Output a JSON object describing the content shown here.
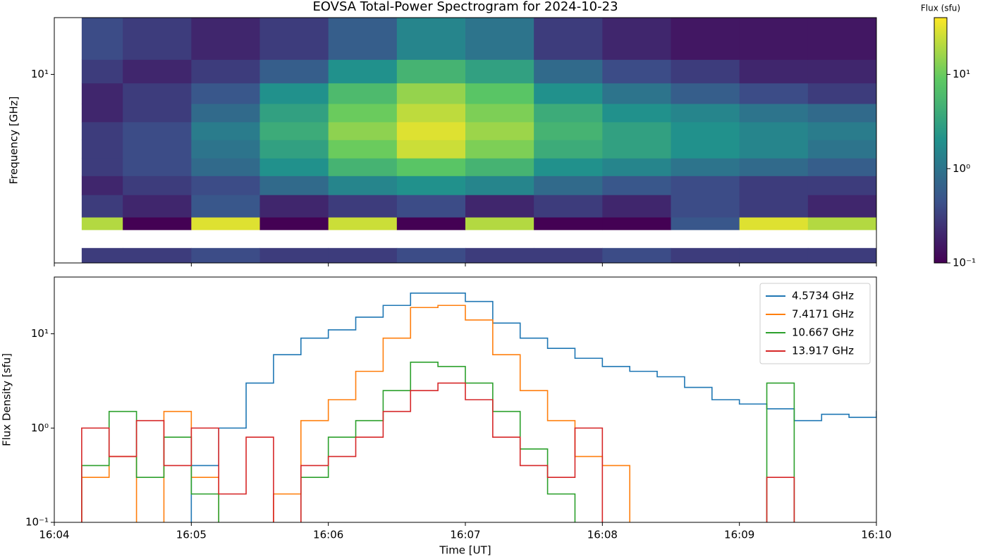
{
  "chart_data": [
    {
      "type": "heatmap",
      "title": "EOVSA Total-Power Spectrogram for 2024-10-23",
      "y_label": "Frequency [GHz]",
      "x_edges": [
        964.2,
        964.5,
        965.0,
        965.5,
        966.0,
        966.5,
        967.0,
        967.5,
        968.0,
        968.5,
        969.0,
        969.5,
        970.0
      ],
      "y_edges": [
        1.0,
        1.2,
        1.5,
        1.75,
        2.3,
        2.9,
        3.6,
        4.5,
        5.6,
        7.0,
        9.0,
        12.0,
        20.0
      ],
      "values": [
        [
          0.3,
          0.3,
          0.4,
          0.3,
          0.3,
          0.4,
          0.3,
          0.3,
          0.4,
          0.3,
          0.3,
          0.3
        ],
        [
          null,
          null,
          null,
          null,
          null,
          null,
          null,
          null,
          null,
          null,
          null,
          null
        ],
        [
          20,
          0.1,
          30,
          0.1,
          25,
          0.1,
          20,
          0.1,
          0.1,
          0.5,
          30,
          20
        ],
        [
          0.3,
          0.2,
          0.5,
          0.2,
          0.3,
          0.4,
          0.2,
          0.3,
          0.2,
          0.4,
          0.3,
          0.2
        ],
        [
          0.2,
          0.3,
          0.4,
          0.8,
          1.5,
          2,
          1.5,
          0.8,
          0.5,
          0.4,
          0.3,
          0.3
        ],
        [
          0.3,
          0.4,
          0.8,
          2,
          5,
          8,
          5,
          2,
          1.5,
          1,
          0.8,
          0.6
        ],
        [
          0.3,
          0.4,
          1,
          3,
          10,
          25,
          12,
          4,
          3,
          2,
          1.5,
          1
        ],
        [
          0.3,
          0.4,
          1.2,
          4,
          14,
          30,
          16,
          5,
          3,
          2,
          1.5,
          1.2
        ],
        [
          0.2,
          0.3,
          0.8,
          3,
          10,
          22,
          12,
          4,
          2,
          1.5,
          1,
          0.8
        ],
        [
          0.2,
          0.3,
          0.5,
          2,
          6,
          15,
          8,
          2,
          1,
          0.6,
          0.4,
          0.3
        ],
        [
          0.3,
          0.2,
          0.3,
          0.6,
          2,
          5,
          3,
          0.8,
          0.4,
          0.3,
          0.2,
          0.2
        ],
        [
          0.4,
          0.3,
          0.2,
          0.3,
          0.6,
          1.5,
          1,
          0.3,
          0.2,
          0.15,
          0.15,
          0.15
        ]
      ],
      "xlim": [
        964,
        970
      ],
      "xticks": [
        964,
        965,
        966,
        967,
        968,
        969,
        970
      ],
      "ylim": [
        1,
        20
      ],
      "log_y": true,
      "yticks": [
        {
          "value": 10,
          "label": "10¹"
        }
      ],
      "colormap": "viridis",
      "colorbar": {
        "label": "Flux (sfu)",
        "lim": [
          0.1,
          40
        ],
        "log": true,
        "ticks": [
          {
            "value": 0.1,
            "label": "10⁻¹"
          },
          {
            "value": 1,
            "label": "10⁰"
          },
          {
            "value": 10,
            "label": "10¹"
          }
        ]
      }
    },
    {
      "type": "line",
      "x_label": "Time [UT]",
      "y_label": "Flux Density [sfu]",
      "x": [
        964.2,
        964.4,
        964.6,
        964.8,
        965.0,
        965.2,
        965.4,
        965.6,
        965.8,
        966.0,
        966.2,
        966.4,
        966.6,
        966.8,
        967.0,
        967.2,
        967.4,
        967.6,
        967.8,
        968.0,
        968.2,
        968.4,
        968.6,
        968.8,
        969.0,
        969.2,
        969.4,
        969.6,
        969.8,
        970.0
      ],
      "series": [
        {
          "name": "4.5734 GHz",
          "color": "#1f77b4",
          "values": [
            null,
            null,
            null,
            null,
            0.4,
            1.0,
            3,
            6,
            9,
            11,
            15,
            20,
            27,
            27,
            22,
            13,
            9,
            7,
            5.5,
            4.5,
            4,
            3.5,
            2.7,
            2,
            1.8,
            1.6,
            1.2,
            1.4,
            1.3,
            1.5
          ]
        },
        {
          "name": "7.4171 GHz",
          "color": "#ff7f0e",
          "values": [
            0.3,
            0.5,
            null,
            1.5,
            0.3,
            null,
            null,
            0.2,
            1.2,
            2,
            4,
            9,
            19,
            20,
            14,
            6,
            2.5,
            1.2,
            0.5,
            0.4,
            null,
            null,
            null,
            null,
            null,
            null,
            null,
            null,
            null,
            null
          ]
        },
        {
          "name": "10.667 GHz",
          "color": "#2ca02c",
          "values": [
            0.4,
            1.5,
            0.3,
            0.8,
            0.2,
            null,
            null,
            null,
            0.3,
            0.8,
            1.2,
            2.5,
            5,
            4.5,
            3,
            1.5,
            0.6,
            0.2,
            null,
            null,
            null,
            null,
            null,
            null,
            null,
            3,
            null,
            null,
            null,
            null
          ]
        },
        {
          "name": "13.917 GHz",
          "color": "#d62728",
          "values": [
            1.0,
            0.5,
            1.2,
            0.4,
            1.0,
            0.2,
            0.8,
            null,
            0.4,
            0.5,
            0.8,
            1.5,
            2.5,
            3,
            2,
            0.8,
            0.4,
            0.3,
            1.0,
            null,
            null,
            null,
            null,
            null,
            null,
            0.3,
            null,
            null,
            null,
            null
          ]
        }
      ],
      "xlim": [
        964,
        970
      ],
      "xticks": [
        {
          "value": 964,
          "label": "16:04"
        },
        {
          "value": 965,
          "label": "16:05"
        },
        {
          "value": 966,
          "label": "16:06"
        },
        {
          "value": 967,
          "label": "16:07"
        },
        {
          "value": 968,
          "label": "16:08"
        },
        {
          "value": 969,
          "label": "16:09"
        },
        {
          "value": 970,
          "label": "16:10"
        }
      ],
      "ylim": [
        0.1,
        40
      ],
      "log_y": true,
      "yticks": [
        {
          "value": 0.1,
          "label": "10⁻¹"
        },
        {
          "value": 1,
          "label": "10⁰"
        },
        {
          "value": 10,
          "label": "10¹"
        }
      ],
      "legend": "upper right"
    }
  ]
}
